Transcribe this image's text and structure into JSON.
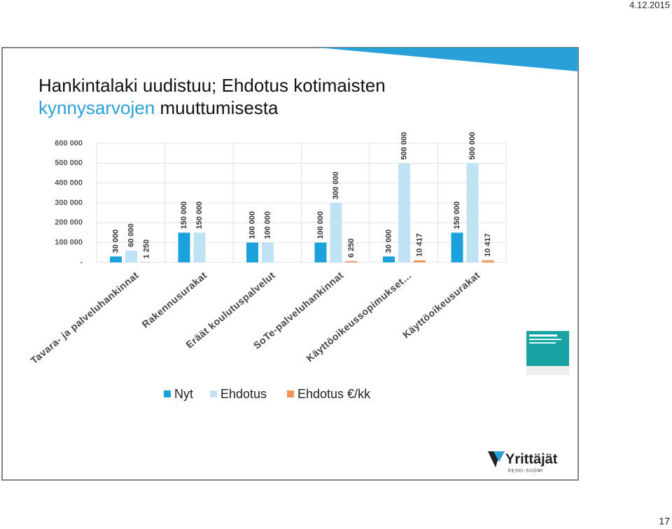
{
  "date": "4.12.2015",
  "page_number": "17",
  "title": {
    "line1": "Hankintalaki uudistuu; Ehdotus kotimaisten",
    "highlight": "kynnysarvojen",
    "rest": "muuttumisesta"
  },
  "logo": {
    "name": "Yrittäjät",
    "region": "KESKI-SUOMI"
  },
  "chart_data": {
    "type": "bar",
    "categories": [
      "Tavara- ja palveluhankinnat",
      "Rakennusurakat",
      "Eräät koulutuspalvelut",
      "SoTe-palveluhankinnat",
      "Käyttöoikeussopimukset…",
      "Käyttöoikeusurakat"
    ],
    "series": [
      {
        "name": "Nyt",
        "color": "#1ba1dc",
        "values": [
          30000,
          150000,
          100000,
          100000,
          30000,
          150000
        ],
        "value_labels": [
          "30 000",
          "150 000",
          "100 000",
          "100 000",
          "30 000",
          "150 000"
        ]
      },
      {
        "name": "Ehdotus",
        "color": "#bfe3f5",
        "values": [
          60000,
          150000,
          100000,
          300000,
          500000,
          500000
        ],
        "value_labels": [
          "60 000",
          "150 000",
          "100 000",
          "300 000",
          "500 000",
          "500 000"
        ]
      },
      {
        "name": "Ehdotus €/kk",
        "color": "#f0955a",
        "values": [
          1250,
          null,
          null,
          6250,
          10417,
          10417
        ],
        "value_labels": [
          "1 250",
          null,
          null,
          "6 250",
          "10 417",
          "10 417"
        ]
      }
    ],
    "ylim": [
      0,
      600000
    ],
    "yticks": [
      {
        "value": 0,
        "label": "-"
      },
      {
        "value": 100000,
        "label": "100 000"
      },
      {
        "value": 200000,
        "label": "200 000"
      },
      {
        "value": 300000,
        "label": "300 000"
      },
      {
        "value": 400000,
        "label": "400 000"
      },
      {
        "value": 500000,
        "label": "500 000"
      },
      {
        "value": 600000,
        "label": "600 000"
      }
    ],
    "grid": true,
    "legend": "bottom"
  }
}
